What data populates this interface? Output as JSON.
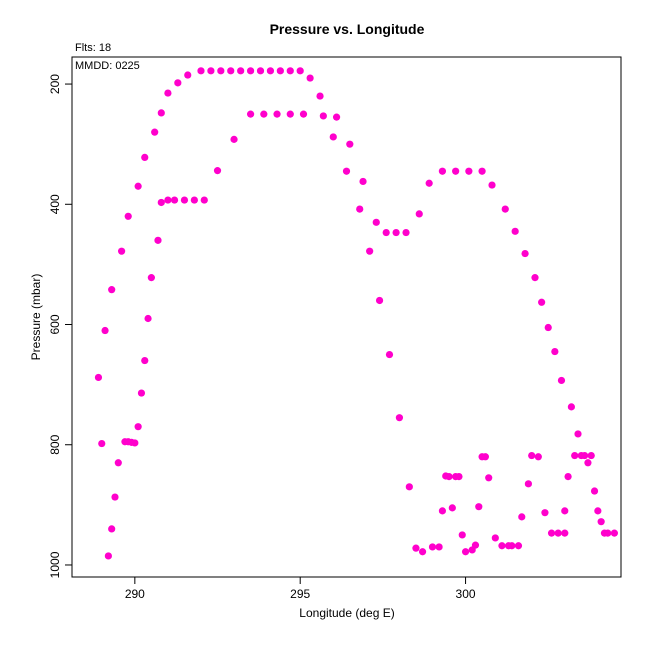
{
  "chart_data": {
    "type": "scatter",
    "title": "Pressure vs. Longitude",
    "subtitle": "Flts: 18",
    "annotation": "MMDD: 0225",
    "xlabel": "Longitude (deg E)",
    "ylabel": "Pressure (mbar)",
    "xlim": [
      288.1,
      304.7
    ],
    "ylim": [
      1020,
      155
    ],
    "y_reversed": true,
    "xticks": [
      290,
      295,
      300
    ],
    "yticks": [
      200,
      400,
      600,
      800,
      1000
    ],
    "grid": false,
    "marker_color": "#ff00cc",
    "points": [
      [
        288.9,
        688
      ],
      [
        289.0,
        798
      ],
      [
        289.1,
        610
      ],
      [
        289.2,
        985
      ],
      [
        289.3,
        940
      ],
      [
        289.3,
        542
      ],
      [
        289.4,
        887
      ],
      [
        289.5,
        830
      ],
      [
        289.6,
        478
      ],
      [
        289.7,
        795
      ],
      [
        289.8,
        795
      ],
      [
        289.8,
        420
      ],
      [
        289.9,
        796
      ],
      [
        290.0,
        797
      ],
      [
        290.1,
        370
      ],
      [
        290.1,
        770
      ],
      [
        290.2,
        714
      ],
      [
        290.3,
        660
      ],
      [
        290.3,
        322
      ],
      [
        290.4,
        590
      ],
      [
        290.5,
        522
      ],
      [
        290.6,
        280
      ],
      [
        290.7,
        460
      ],
      [
        290.8,
        248
      ],
      [
        290.8,
        397
      ],
      [
        291.0,
        215
      ],
      [
        291.0,
        393
      ],
      [
        291.2,
        393
      ],
      [
        291.3,
        198
      ],
      [
        291.5,
        393
      ],
      [
        291.6,
        185
      ],
      [
        291.8,
        393
      ],
      [
        292.0,
        178
      ],
      [
        292.1,
        393
      ],
      [
        292.3,
        178
      ],
      [
        292.5,
        344
      ],
      [
        292.6,
        178
      ],
      [
        292.9,
        178
      ],
      [
        293.0,
        292
      ],
      [
        293.2,
        178
      ],
      [
        293.5,
        178
      ],
      [
        293.5,
        250
      ],
      [
        293.8,
        178
      ],
      [
        293.9,
        250
      ],
      [
        294.1,
        178
      ],
      [
        294.3,
        250
      ],
      [
        294.4,
        178
      ],
      [
        294.7,
        250
      ],
      [
        294.7,
        178
      ],
      [
        295.0,
        178
      ],
      [
        295.1,
        250
      ],
      [
        295.3,
        190
      ],
      [
        295.6,
        220
      ],
      [
        295.7,
        253
      ],
      [
        296.0,
        288
      ],
      [
        296.1,
        255
      ],
      [
        296.5,
        300
      ],
      [
        296.4,
        345
      ],
      [
        296.8,
        408
      ],
      [
        296.9,
        362
      ],
      [
        297.1,
        478
      ],
      [
        297.3,
        430
      ],
      [
        297.4,
        560
      ],
      [
        297.6,
        447
      ],
      [
        297.7,
        650
      ],
      [
        297.9,
        447
      ],
      [
        298.0,
        755
      ],
      [
        298.2,
        447
      ],
      [
        298.3,
        870
      ],
      [
        298.5,
        972
      ],
      [
        298.6,
        416
      ],
      [
        298.7,
        978
      ],
      [
        298.9,
        365
      ],
      [
        299.0,
        970
      ],
      [
        299.2,
        970
      ],
      [
        299.3,
        345
      ],
      [
        299.3,
        910
      ],
      [
        299.4,
        852
      ],
      [
        299.5,
        853
      ],
      [
        299.6,
        905
      ],
      [
        299.7,
        345
      ],
      [
        299.7,
        853
      ],
      [
        299.8,
        853
      ],
      [
        299.9,
        950
      ],
      [
        300.0,
        978
      ],
      [
        300.1,
        345
      ],
      [
        300.2,
        975
      ],
      [
        300.3,
        967
      ],
      [
        300.4,
        903
      ],
      [
        300.5,
        345
      ],
      [
        300.5,
        820
      ],
      [
        300.6,
        820
      ],
      [
        300.7,
        855
      ],
      [
        300.8,
        368
      ],
      [
        300.9,
        955
      ],
      [
        301.1,
        968
      ],
      [
        301.2,
        408
      ],
      [
        301.3,
        968
      ],
      [
        301.4,
        968
      ],
      [
        301.5,
        445
      ],
      [
        301.6,
        968
      ],
      [
        301.7,
        920
      ],
      [
        301.8,
        482
      ],
      [
        301.9,
        865
      ],
      [
        302.0,
        818
      ],
      [
        302.1,
        522
      ],
      [
        302.2,
        820
      ],
      [
        302.3,
        563
      ],
      [
        302.4,
        913
      ],
      [
        302.5,
        605
      ],
      [
        302.6,
        947
      ],
      [
        302.7,
        645
      ],
      [
        302.8,
        947
      ],
      [
        302.9,
        693
      ],
      [
        303.0,
        947
      ],
      [
        303.0,
        910
      ],
      [
        303.1,
        853
      ],
      [
        303.2,
        737
      ],
      [
        303.3,
        818
      ],
      [
        303.4,
        782
      ],
      [
        303.5,
        818
      ],
      [
        303.6,
        818
      ],
      [
        303.7,
        830
      ],
      [
        303.8,
        818
      ],
      [
        303.9,
        877
      ],
      [
        304.0,
        910
      ],
      [
        304.1,
        928
      ],
      [
        304.2,
        947
      ],
      [
        304.3,
        947
      ],
      [
        304.5,
        947
      ]
    ]
  }
}
